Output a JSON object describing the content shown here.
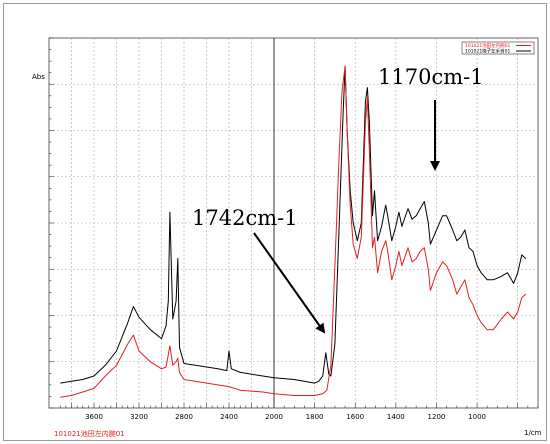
{
  "chart_data": {
    "type": "line",
    "ylabel": "Abs",
    "xunit": "1/cm",
    "x_reversed": true,
    "xlim": [
      4000,
      700
    ],
    "ylim": [
      0,
      1
    ],
    "grid": true,
    "legend": "top-right",
    "xticks": [
      3600,
      3200,
      2800,
      2400,
      2000,
      1800,
      1600,
      1400,
      1200,
      1000
    ],
    "colors": {
      "series_black": "#000000",
      "series_red": "#e02020",
      "grid": "#aaaaaa"
    },
    "series": [
      {
        "name": "101021梅子左手首01",
        "color": "#000000",
        "points": [
          [
            3900,
            0.07
          ],
          [
            3800,
            0.075
          ],
          [
            3700,
            0.08
          ],
          [
            3600,
            0.09
          ],
          [
            3500,
            0.12
          ],
          [
            3400,
            0.16
          ],
          [
            3300,
            0.24
          ],
          [
            3250,
            0.285
          ],
          [
            3200,
            0.255
          ],
          [
            3100,
            0.22
          ],
          [
            3000,
            0.195
          ],
          [
            2960,
            0.23
          ],
          [
            2940,
            0.3
          ],
          [
            2925,
            0.55
          ],
          [
            2900,
            0.25
          ],
          [
            2870,
            0.3
          ],
          [
            2855,
            0.42
          ],
          [
            2840,
            0.17
          ],
          [
            2800,
            0.125
          ],
          [
            2700,
            0.12
          ],
          [
            2500,
            0.11
          ],
          [
            2420,
            0.105
          ],
          [
            2400,
            0.16
          ],
          [
            2380,
            0.11
          ],
          [
            2300,
            0.1
          ],
          [
            2100,
            0.09
          ],
          [
            2000,
            0.085
          ],
          [
            1900,
            0.08
          ],
          [
            1800,
            0.07
          ],
          [
            1780,
            0.075
          ],
          [
            1760,
            0.09
          ],
          [
            1745,
            0.155
          ],
          [
            1730,
            0.095
          ],
          [
            1720,
            0.09
          ],
          [
            1700,
            0.18
          ],
          [
            1680,
            0.5
          ],
          [
            1660,
            0.82
          ],
          [
            1650,
            0.96
          ],
          [
            1640,
            0.78
          ],
          [
            1625,
            0.61
          ],
          [
            1610,
            0.52
          ],
          [
            1590,
            0.47
          ],
          [
            1570,
            0.52
          ],
          [
            1550,
            0.86
          ],
          [
            1540,
            0.9
          ],
          [
            1530,
            0.8
          ],
          [
            1515,
            0.54
          ],
          [
            1505,
            0.61
          ],
          [
            1490,
            0.47
          ],
          [
            1470,
            0.51
          ],
          [
            1450,
            0.57
          ],
          [
            1440,
            0.54
          ],
          [
            1420,
            0.47
          ],
          [
            1400,
            0.51
          ],
          [
            1385,
            0.55
          ],
          [
            1370,
            0.51
          ],
          [
            1340,
            0.56
          ],
          [
            1320,
            0.53
          ],
          [
            1300,
            0.54
          ],
          [
            1280,
            0.56
          ],
          [
            1260,
            0.58
          ],
          [
            1240,
            0.52
          ],
          [
            1230,
            0.46
          ],
          [
            1200,
            0.5
          ],
          [
            1170,
            0.54
          ],
          [
            1150,
            0.54
          ],
          [
            1120,
            0.5
          ],
          [
            1100,
            0.47
          ],
          [
            1080,
            0.48
          ],
          [
            1060,
            0.5
          ],
          [
            1040,
            0.45
          ],
          [
            1020,
            0.44
          ],
          [
            1000,
            0.4
          ],
          [
            980,
            0.38
          ],
          [
            950,
            0.36
          ],
          [
            920,
            0.36
          ],
          [
            880,
            0.37
          ],
          [
            850,
            0.38
          ],
          [
            820,
            0.35
          ],
          [
            800,
            0.38
          ],
          [
            780,
            0.43
          ],
          [
            760,
            0.42
          ]
        ]
      },
      {
        "name": "101021池田左内腕01",
        "color": "#e02020",
        "points": [
          [
            3900,
            0.03
          ],
          [
            3800,
            0.035
          ],
          [
            3700,
            0.045
          ],
          [
            3600,
            0.055
          ],
          [
            3500,
            0.09
          ],
          [
            3400,
            0.12
          ],
          [
            3300,
            0.18
          ],
          [
            3250,
            0.205
          ],
          [
            3200,
            0.16
          ],
          [
            3100,
            0.13
          ],
          [
            3000,
            0.11
          ],
          [
            2960,
            0.115
          ],
          [
            2940,
            0.15
          ],
          [
            2925,
            0.175
          ],
          [
            2900,
            0.12
          ],
          [
            2870,
            0.13
          ],
          [
            2855,
            0.14
          ],
          [
            2840,
            0.1
          ],
          [
            2800,
            0.08
          ],
          [
            2700,
            0.075
          ],
          [
            2500,
            0.065
          ],
          [
            2400,
            0.06
          ],
          [
            2300,
            0.05
          ],
          [
            2100,
            0.045
          ],
          [
            2000,
            0.04
          ],
          [
            1900,
            0.035
          ],
          [
            1800,
            0.035
          ],
          [
            1760,
            0.04
          ],
          [
            1740,
            0.05
          ],
          [
            1720,
            0.12
          ],
          [
            1700,
            0.4
          ],
          [
            1680,
            0.7
          ],
          [
            1665,
            0.89
          ],
          [
            1650,
            0.96
          ],
          [
            1640,
            0.78
          ],
          [
            1625,
            0.57
          ],
          [
            1610,
            0.46
          ],
          [
            1590,
            0.42
          ],
          [
            1570,
            0.48
          ],
          [
            1550,
            0.8
          ],
          [
            1540,
            0.87
          ],
          [
            1530,
            0.72
          ],
          [
            1515,
            0.45
          ],
          [
            1505,
            0.48
          ],
          [
            1490,
            0.38
          ],
          [
            1470,
            0.44
          ],
          [
            1450,
            0.47
          ],
          [
            1440,
            0.44
          ],
          [
            1420,
            0.36
          ],
          [
            1400,
            0.4
          ],
          [
            1385,
            0.44
          ],
          [
            1370,
            0.4
          ],
          [
            1340,
            0.45
          ],
          [
            1320,
            0.41
          ],
          [
            1300,
            0.42
          ],
          [
            1280,
            0.44
          ],
          [
            1260,
            0.45
          ],
          [
            1240,
            0.39
          ],
          [
            1230,
            0.33
          ],
          [
            1200,
            0.38
          ],
          [
            1170,
            0.41
          ],
          [
            1150,
            0.4
          ],
          [
            1120,
            0.36
          ],
          [
            1100,
            0.32
          ],
          [
            1080,
            0.34
          ],
          [
            1060,
            0.36
          ],
          [
            1040,
            0.31
          ],
          [
            1020,
            0.29
          ],
          [
            1000,
            0.26
          ],
          [
            980,
            0.24
          ],
          [
            950,
            0.22
          ],
          [
            920,
            0.22
          ],
          [
            880,
            0.25
          ],
          [
            850,
            0.27
          ],
          [
            820,
            0.25
          ],
          [
            800,
            0.27
          ],
          [
            780,
            0.31
          ],
          [
            760,
            0.32
          ]
        ]
      }
    ],
    "annotations": [
      {
        "text": "1742cm-1",
        "arrow_to": [
          1745,
          0.155
        ]
      },
      {
        "text": "1170cm-1",
        "arrow_to": [
          1275,
          0.575
        ]
      }
    ],
    "footer_label": "101021池田左内腕01"
  }
}
